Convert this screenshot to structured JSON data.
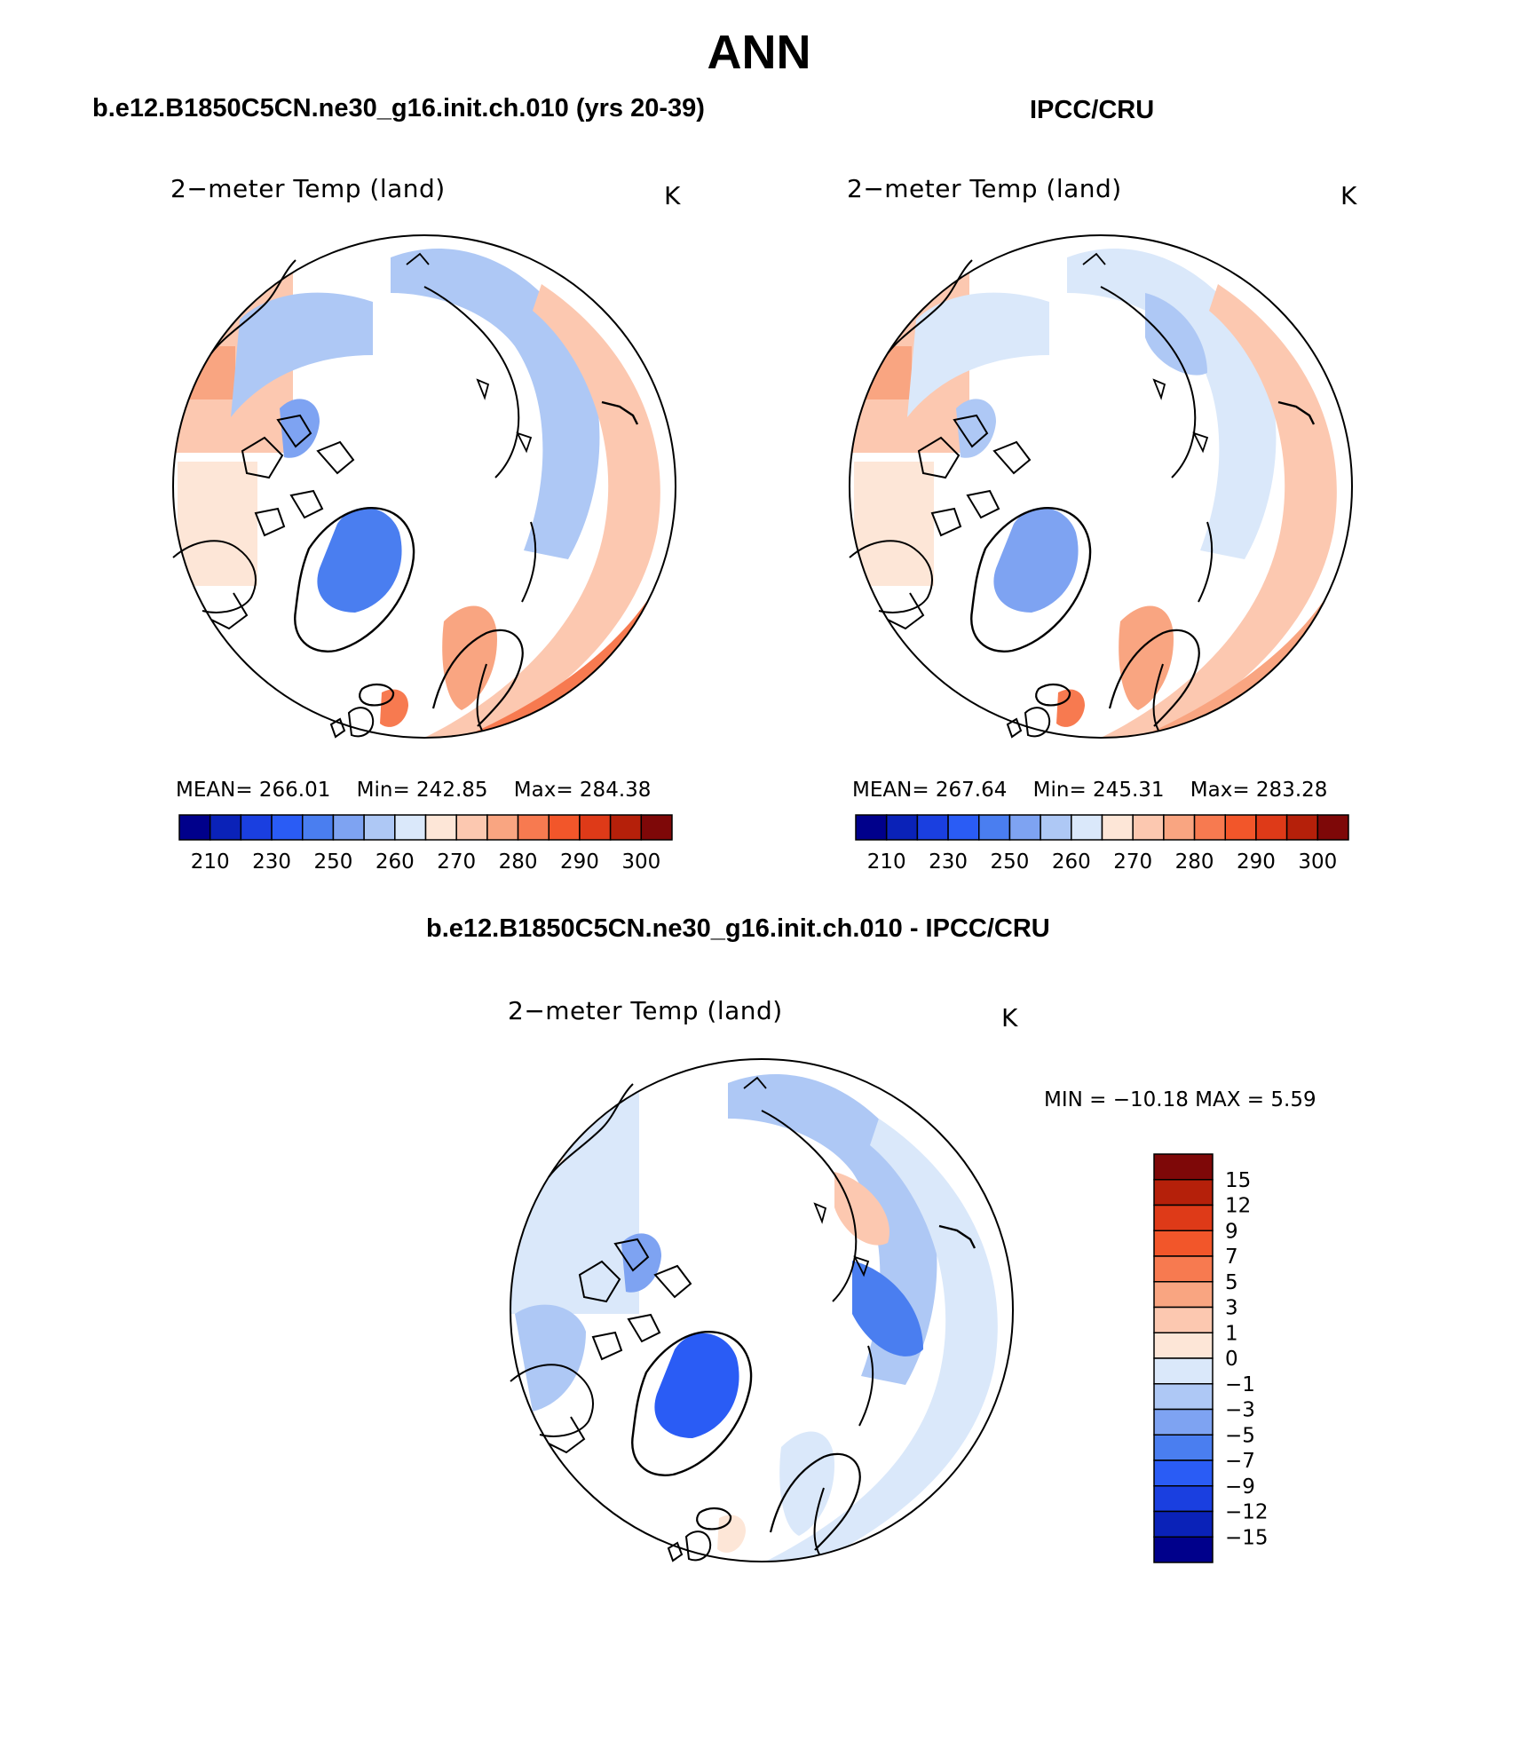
{
  "title": "ANN",
  "panels": [
    {
      "heading": "b.e12.B1850C5CN.ne30_g16.init.ch.010 (yrs 20-39)",
      "variable": "2−meter Temp (land)",
      "units": "K",
      "mean_label": "MEAN=",
      "mean": "266.01",
      "min_label": "Min=",
      "min": "242.85",
      "max_label": "Max=",
      "max": "284.38"
    },
    {
      "heading": "IPCC/CRU",
      "variable": "2−meter Temp (land)",
      "units": "K",
      "mean_label": "MEAN=",
      "mean": "267.64",
      "min_label": "Min=",
      "min": "245.31",
      "max_label": "Max=",
      "max": "283.28"
    }
  ],
  "diff_panel": {
    "heading": "b.e12.B1850C5CN.ne30_g16.init.ch.010 - IPCC/CRU",
    "variable": "2−meter Temp (land)",
    "units": "K",
    "minmax_text": "MIN = −10.18  MAX =     5.59"
  },
  "abs_colorbar": {
    "colors": [
      "#00008b",
      "#0a22b8",
      "#1a3fe0",
      "#2a5cf5",
      "#4a7ef0",
      "#7ea3f2",
      "#aec8f5",
      "#dae8fa",
      "#fde6d7",
      "#fcc8b0",
      "#f9a581",
      "#f77a50",
      "#f2562a",
      "#de3a18",
      "#b5200a",
      "#7e0808"
    ],
    "tick_labels": [
      "210",
      "230",
      "250",
      "260",
      "270",
      "280",
      "290",
      "300"
    ]
  },
  "diff_colorbar": {
    "colors": [
      "#00008b",
      "#0a22b8",
      "#1a3fe0",
      "#2a5cf5",
      "#4a7ef0",
      "#7ea3f2",
      "#aec8f5",
      "#dae8fa",
      "#fde6d7",
      "#fcc8b0",
      "#f9a581",
      "#f77a50",
      "#f2562a",
      "#de3a18",
      "#b5200a",
      "#7e0808"
    ],
    "tick_labels": [
      "15",
      "12",
      "9",
      "7",
      "5",
      "3",
      "1",
      "0",
      "−1",
      "−3",
      "−5",
      "−7",
      "−9",
      "−12",
      "−15"
    ]
  }
}
